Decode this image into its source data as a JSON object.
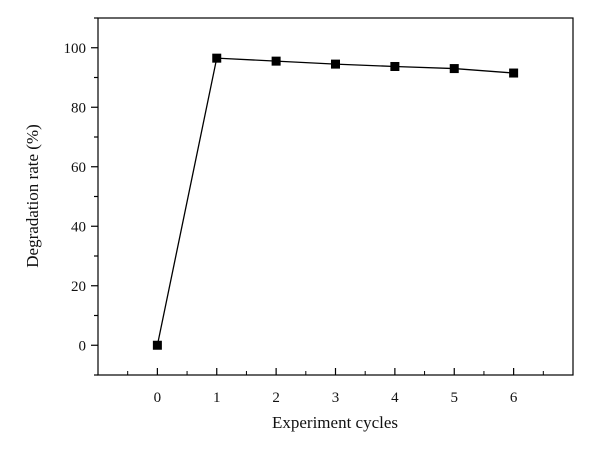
{
  "chart_data": {
    "type": "line",
    "title": "",
    "xlabel": "Experiment cycles",
    "ylabel": "Degradation rate (%)",
    "xlim": [
      -1,
      7
    ],
    "ylim": [
      -10,
      110
    ],
    "xticks": [
      0,
      1,
      2,
      3,
      4,
      5,
      6
    ],
    "yticks": [
      0,
      20,
      40,
      60,
      80,
      100
    ],
    "grid": false,
    "legend": "none",
    "marker": "square",
    "line_color": "#000000",
    "series": [
      {
        "x": [
          0,
          1,
          2,
          3,
          4,
          5,
          6
        ],
        "values": [
          0,
          96.5,
          95.5,
          94.5,
          93.7,
          93.0,
          91.5
        ]
      }
    ]
  }
}
